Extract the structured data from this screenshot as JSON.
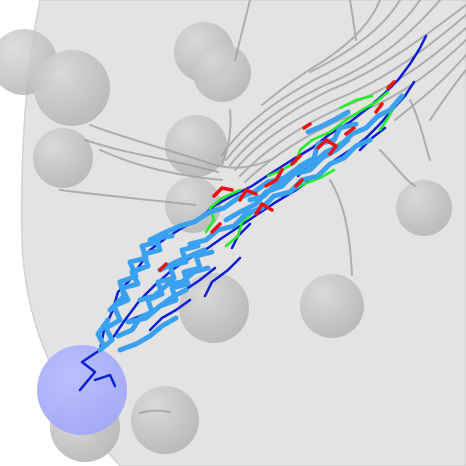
{
  "colors": {
    "background": "#ffffff",
    "membrane_fill": "#e2e2e2",
    "membrane_edge": "#d0d0d0",
    "sphere": "#bdbdbd",
    "axon_gray": "#9a9a9a",
    "source_sphere": "#aab0ff",
    "track_blue": "#0a1fd6",
    "track_light_blue": "#3aa0f0",
    "track_green": "#22ee22",
    "track_red": "#ee1111"
  }
}
